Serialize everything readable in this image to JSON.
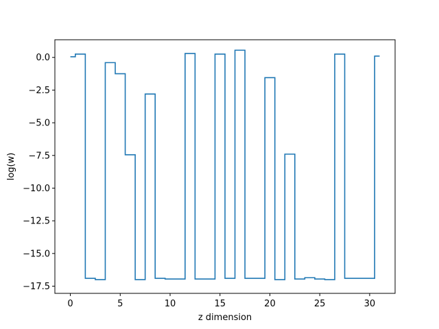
{
  "chart_data": {
    "type": "line",
    "step": "mid",
    "title": "",
    "xlabel": "z dimension",
    "ylabel": "log(w)",
    "xlim": [
      -1.55,
      32.55
    ],
    "ylim": [
      -18.05,
      1.35
    ],
    "grid": false,
    "line_color": "#1f77b4",
    "xticks": [
      {
        "value": 0,
        "label": "0"
      },
      {
        "value": 5,
        "label": "5"
      },
      {
        "value": 10,
        "label": "10"
      },
      {
        "value": 15,
        "label": "15"
      },
      {
        "value": 20,
        "label": "20"
      },
      {
        "value": 25,
        "label": "25"
      },
      {
        "value": 30,
        "label": "30"
      }
    ],
    "yticks": [
      {
        "value": 0,
        "label": "0.0"
      },
      {
        "value": -2.5,
        "label": "−2.5"
      },
      {
        "value": -5,
        "label": "−5.0"
      },
      {
        "value": -7.5,
        "label": "−7.5"
      },
      {
        "value": -10,
        "label": "−10.0"
      },
      {
        "value": -12.5,
        "label": "−12.5"
      },
      {
        "value": -15,
        "label": "−15.0"
      },
      {
        "value": -17.5,
        "label": "−17.5"
      }
    ],
    "series": [
      {
        "x": [
          0,
          1,
          2,
          3,
          4,
          5,
          6,
          7,
          8,
          9,
          10,
          11,
          12,
          13,
          14,
          15,
          16,
          17,
          18,
          19,
          20,
          21,
          22,
          23,
          24,
          25,
          26,
          27,
          28,
          29,
          30,
          31
        ],
        "values": [
          0.05,
          0.25,
          -16.9,
          -17.0,
          -0.4,
          -1.25,
          -7.45,
          -17.0,
          -2.8,
          -16.9,
          -16.95,
          -16.95,
          0.3,
          -16.95,
          -16.95,
          0.25,
          -16.9,
          0.55,
          -16.9,
          -16.9,
          -1.55,
          -17.0,
          -7.4,
          -16.95,
          -16.85,
          -16.95,
          -17.0,
          0.25,
          -16.9,
          -16.9,
          -16.9,
          0.1
        ]
      }
    ]
  }
}
